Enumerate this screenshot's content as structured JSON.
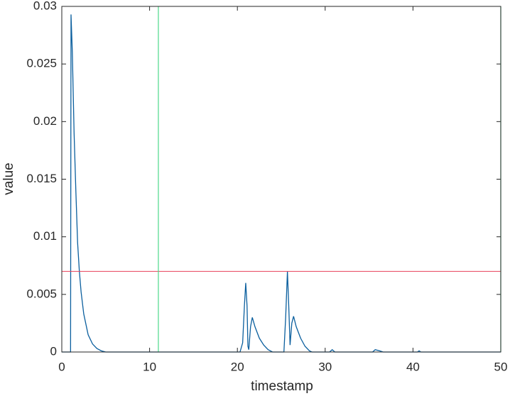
{
  "chart_data": {
    "type": "line",
    "xlabel": "timestamp",
    "ylabel": "value",
    "xlim": [
      0,
      50
    ],
    "ylim": [
      0,
      0.03
    ],
    "xticks": [
      0,
      10,
      20,
      30,
      40,
      50
    ],
    "yticks": [
      0,
      0.005,
      0.01,
      0.015,
      0.02,
      0.025,
      0.03
    ],
    "x": [
      0,
      1,
      1.05,
      1.2,
      1.4,
      1.6,
      1.8,
      2.0,
      2.2,
      2.5,
      3.0,
      3.5,
      4.0,
      4.5,
      5.0,
      20.3,
      20.6,
      20.8,
      20.95,
      21.1,
      21.2,
      21.3,
      21.5,
      21.7,
      22.0,
      22.5,
      23.0,
      23.5,
      24.0,
      25.3,
      25.5,
      25.7,
      25.85,
      26.0,
      26.2,
      26.4,
      26.7,
      27.2,
      27.7,
      28.2,
      28.5,
      30.5,
      30.8,
      31.1,
      35.4,
      35.7,
      36.2,
      36.6,
      40.5,
      40.7,
      40.9,
      50
    ],
    "series": [
      {
        "color": "#0b5f9e",
        "values": [
          0,
          0,
          0.0293,
          0.026,
          0.019,
          0.014,
          0.0095,
          0.007,
          0.0052,
          0.0033,
          0.0015,
          0.0007,
          0.0003,
          0.0001,
          0,
          0,
          0.0008,
          0.004,
          0.006,
          0.004,
          0.0005,
          0.0002,
          0.0022,
          0.003,
          0.0022,
          0.0012,
          0.0006,
          0.0002,
          0,
          0,
          0.003,
          0.007,
          0.004,
          0.0006,
          0.0025,
          0.0031,
          0.0022,
          0.0012,
          0.0005,
          0.0001,
          0,
          0,
          0.0002,
          0,
          0,
          0.0002,
          0.0001,
          0,
          0,
          0.0001,
          0,
          0
        ]
      }
    ],
    "hlines": [
      {
        "value": 0.007,
        "color": "#e8405a"
      }
    ],
    "vlines": [
      {
        "value": 11,
        "color": "#4cd98a"
      },
      {
        "value": 50,
        "color": "#4cd98a"
      }
    ]
  }
}
